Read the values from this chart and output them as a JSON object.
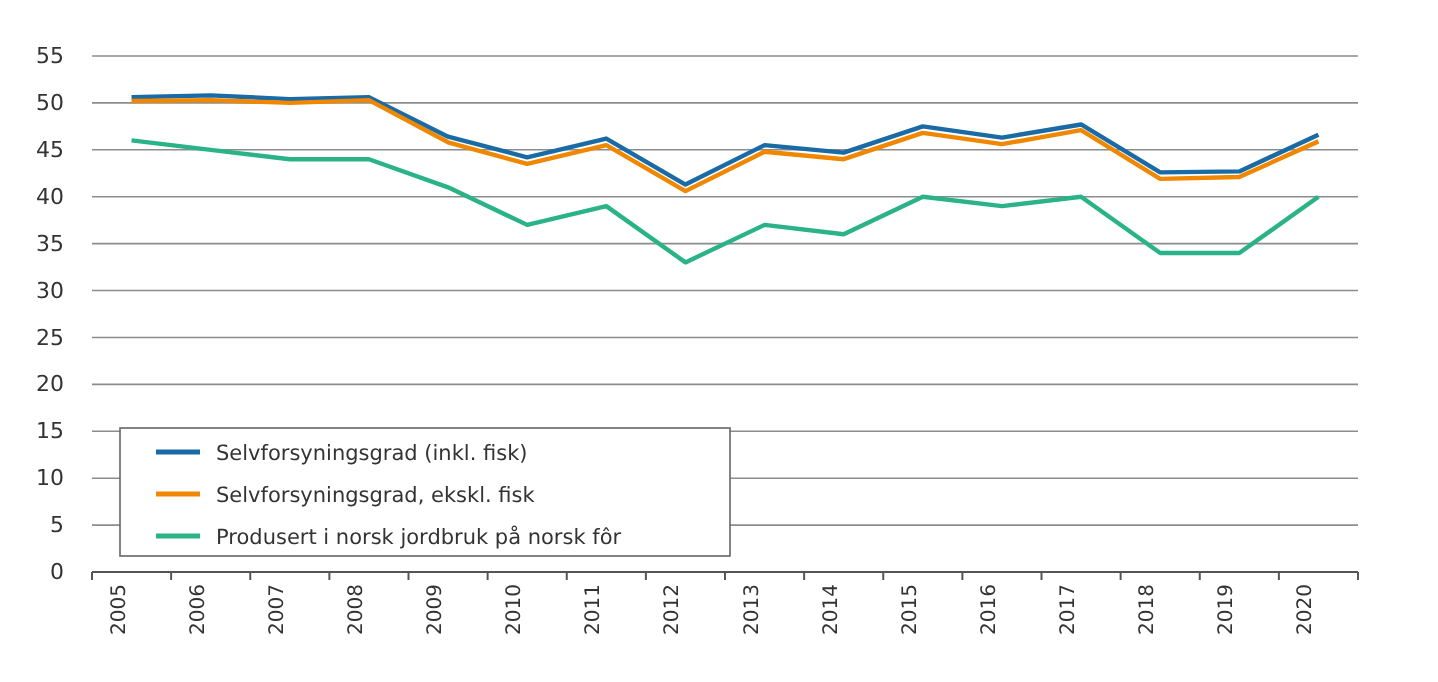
{
  "chart_data": {
    "type": "line",
    "categories": [
      "2005",
      "2006",
      "2007",
      "2008",
      "2009",
      "2010",
      "2011",
      "2012",
      "2013",
      "2014",
      "2015",
      "2016",
      "2017",
      "2018",
      "2019",
      "2020"
    ],
    "series": [
      {
        "name": "Selvforsyningsgrad (inkl. fisk)",
        "color": "#1a6aa6",
        "values": [
          50.6,
          50.8,
          50.4,
          50.6,
          46.4,
          44.2,
          46.2,
          41.3,
          45.5,
          44.7,
          47.5,
          46.3,
          47.7,
          42.6,
          42.7,
          46.6
        ]
      },
      {
        "name": "Selvforsyningsgrad, ekskl. fisk",
        "color": "#f08700",
        "values": [
          50.2,
          50.3,
          50.0,
          50.3,
          45.8,
          43.5,
          45.5,
          40.6,
          44.8,
          44.0,
          46.8,
          45.6,
          47.1,
          41.9,
          42.1,
          45.9
        ]
      },
      {
        "name": "Produsert i norsk jordbruk på norsk fôr",
        "color": "#2bb388",
        "values": [
          46,
          45,
          44,
          44,
          41,
          37,
          39,
          33,
          37,
          36,
          40,
          39,
          40,
          34,
          34,
          40
        ]
      }
    ],
    "ylim": [
      0,
      55
    ],
    "yticks": [
      0,
      5,
      10,
      15,
      20,
      25,
      30,
      35,
      40,
      45,
      50,
      55
    ],
    "grid": "y",
    "legend": "bottom left"
  }
}
